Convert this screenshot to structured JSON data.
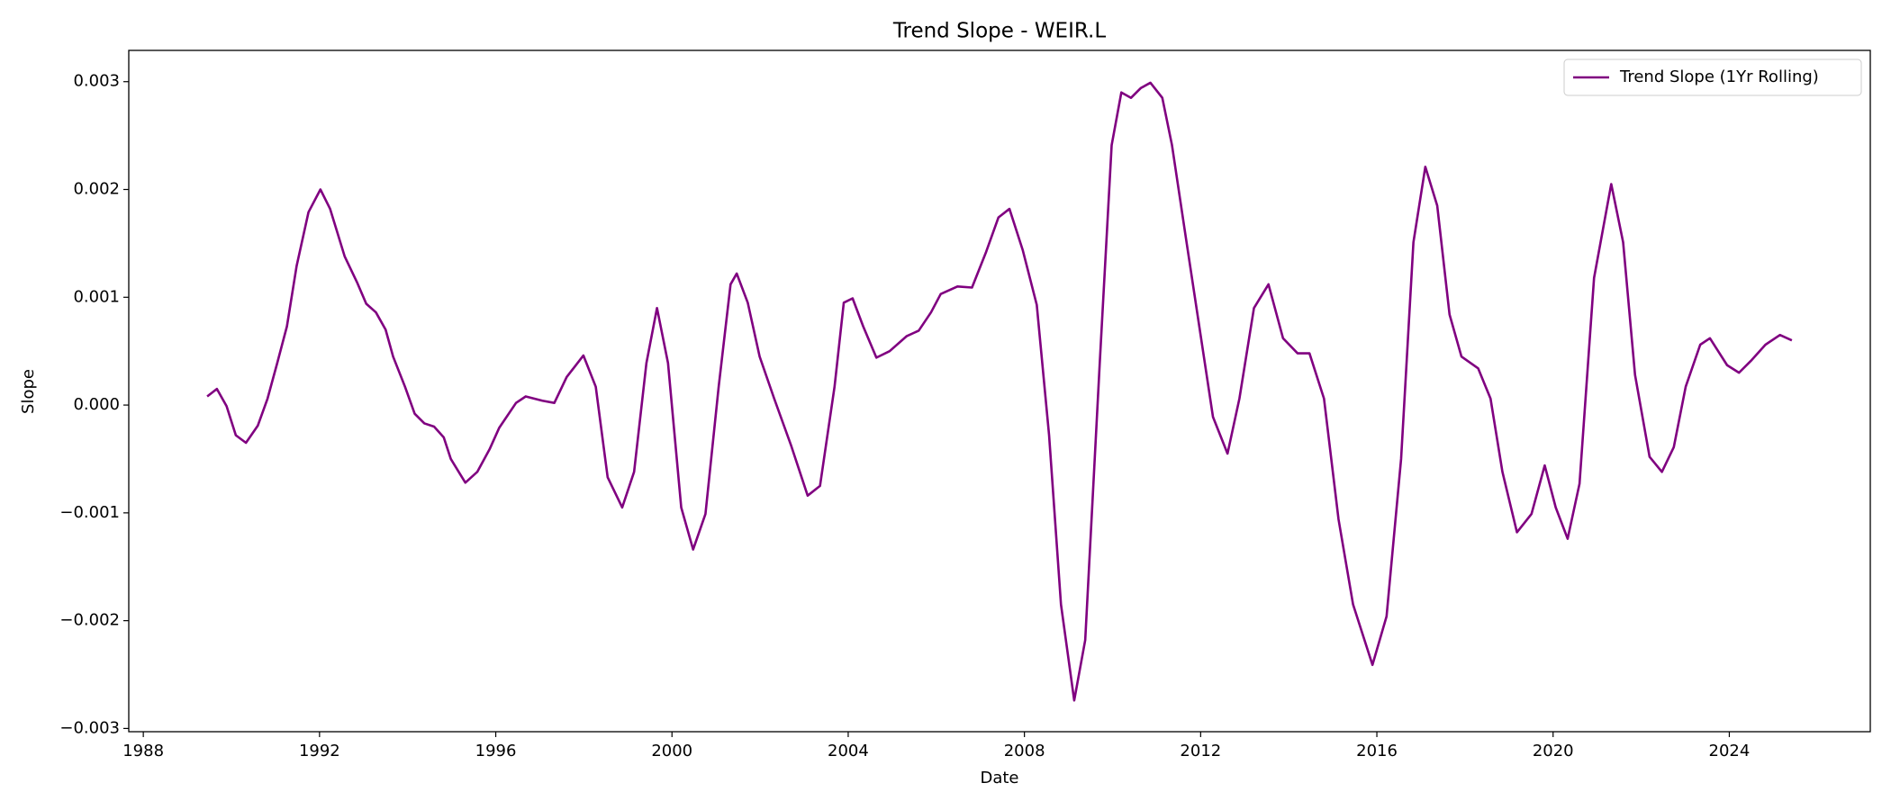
{
  "chart_data": {
    "type": "line",
    "title": "Trend Slope - WEIR.L",
    "x_label": "Date",
    "y_label": "Slope",
    "x": [
      1989.45,
      1989.67,
      1989.89,
      1990.1,
      1990.33,
      1990.6,
      1990.82,
      1991.04,
      1991.26,
      1991.48,
      1991.75,
      1992.02,
      1992.24,
      1992.57,
      1992.85,
      1993.06,
      1993.28,
      1993.5,
      1993.67,
      1993.94,
      1994.16,
      1994.38,
      1994.6,
      1994.82,
      1994.98,
      1995.31,
      1995.58,
      1995.86,
      1996.08,
      1996.46,
      1996.68,
      1997.06,
      1997.33,
      1997.61,
      1997.99,
      1998.27,
      1998.54,
      1998.87,
      1999.14,
      1999.42,
      1999.66,
      1999.91,
      2000.21,
      2000.48,
      2000.76,
      2001.06,
      2001.33,
      2001.47,
      2001.72,
      2001.99,
      2002.32,
      2002.7,
      2003.08,
      2003.36,
      2003.69,
      2003.9,
      2004.1,
      2004.34,
      2004.64,
      2004.94,
      2005.33,
      2005.6,
      2005.88,
      2006.1,
      2006.48,
      2006.81,
      2007.13,
      2007.41,
      2007.66,
      2007.96,
      2008.28,
      2008.56,
      2008.83,
      2009.13,
      2009.38,
      2009.71,
      2009.98,
      2010.2,
      2010.42,
      2010.64,
      2010.86,
      2011.13,
      2011.35,
      2011.68,
      2012.01,
      2012.28,
      2012.61,
      2012.88,
      2013.21,
      2013.54,
      2013.87,
      2014.2,
      2014.47,
      2014.8,
      2015.13,
      2015.46,
      2015.9,
      2016.22,
      2016.55,
      2016.83,
      2017.1,
      2017.37,
      2017.65,
      2017.92,
      2018.3,
      2018.58,
      2018.85,
      2019.18,
      2019.51,
      2019.81,
      2020.06,
      2020.33,
      2020.6,
      2020.93,
      2021.32,
      2021.59,
      2021.86,
      2022.19,
      2022.47,
      2022.74,
      2023.01,
      2023.34,
      2023.56,
      2023.95,
      2024.22,
      2024.49,
      2024.82,
      2025.15,
      2025.42
    ],
    "series": [
      {
        "name": "Trend Slope (1Yr Rolling)",
        "color": "#800080",
        "values": [
          8e-05,
          0.00015,
          -1e-05,
          -0.00028,
          -0.00035,
          -0.00019,
          6e-05,
          0.00039,
          0.00073,
          0.00129,
          0.00179,
          0.002,
          0.00182,
          0.00138,
          0.00114,
          0.00094,
          0.00086,
          0.0007,
          0.00045,
          0.00017,
          -8e-05,
          -0.00017,
          -0.0002,
          -0.0003,
          -0.0005,
          -0.00072,
          -0.00062,
          -0.00041,
          -0.00021,
          2e-05,
          8e-05,
          4e-05,
          2e-05,
          0.00026,
          0.00046,
          0.00017,
          -0.00067,
          -0.00095,
          -0.00062,
          0.00039,
          0.0009,
          0.00039,
          -0.00095,
          -0.00134,
          -0.00101,
          0.00017,
          0.00112,
          0.00122,
          0.00095,
          0.00045,
          6e-05,
          -0.00037,
          -0.00084,
          -0.00075,
          0.00017,
          0.00095,
          0.00099,
          0.00073,
          0.00044,
          0.0005,
          0.00064,
          0.00069,
          0.00086,
          0.00103,
          0.0011,
          0.00109,
          0.00142,
          0.00174,
          0.00182,
          0.00144,
          0.00093,
          -0.00028,
          -0.00185,
          -0.00274,
          -0.00218,
          0.00039,
          0.00241,
          0.0029,
          0.00285,
          0.00294,
          0.00299,
          0.00285,
          0.00241,
          0.00151,
          0.00062,
          -0.00011,
          -0.00045,
          6e-05,
          0.0009,
          0.00112,
          0.00062,
          0.00048,
          0.00048,
          6e-05,
          -0.00106,
          -0.00185,
          -0.00241,
          -0.00196,
          -0.0005,
          0.00151,
          0.00221,
          0.00185,
          0.00084,
          0.00045,
          0.00034,
          6e-05,
          -0.00062,
          -0.00118,
          -0.00101,
          -0.00056,
          -0.00095,
          -0.00124,
          -0.00073,
          0.00118,
          0.00205,
          0.00151,
          0.00028,
          -0.00048,
          -0.00062,
          -0.00039,
          0.00017,
          0.00056,
          0.00062,
          0.00037,
          0.0003,
          0.00041,
          0.00056,
          0.00065,
          0.0006
        ]
      }
    ],
    "xlim": [
      1987.67,
      2027.2
    ],
    "xticks": [
      1988,
      1992,
      1996,
      2000,
      2004,
      2008,
      2012,
      2016,
      2020,
      2024
    ],
    "ylim": [
      -0.00303,
      0.00329
    ],
    "yticks": [
      {
        "value": -0.003,
        "label": "−0.003"
      },
      {
        "value": -0.002,
        "label": "−0.002"
      },
      {
        "value": -0.001,
        "label": "−0.001"
      },
      {
        "value": 0,
        "label": "0.000"
      },
      {
        "value": 0.001,
        "label": "0.001"
      },
      {
        "value": 0.002,
        "label": "0.002"
      },
      {
        "value": 0.003,
        "label": "0.003"
      }
    ],
    "grid": false,
    "legend_position": "upper right"
  }
}
